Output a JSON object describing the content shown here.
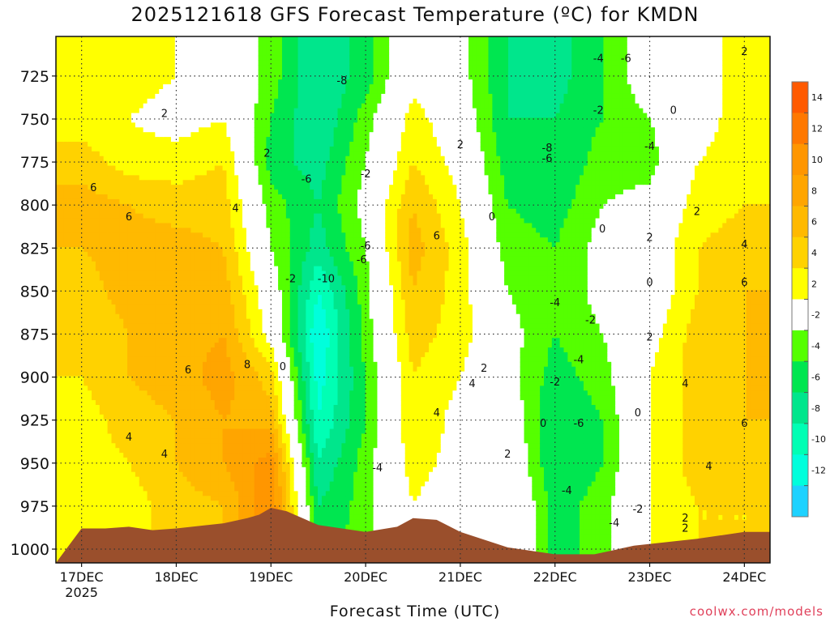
{
  "chart_data": {
    "type": "heatmap",
    "title": "2025121618 GFS Forecast Temperature (ºC) for KMDN",
    "xlabel": "Forecast Time (UTC)",
    "credit": "coolwx.com/models",
    "year_label": "2025",
    "x_ticks": [
      "17DEC",
      "18DEC",
      "19DEC",
      "20DEC",
      "21DEC",
      "22DEC",
      "23DEC",
      "24DEC"
    ],
    "y_ticks": [
      725,
      750,
      775,
      800,
      825,
      850,
      875,
      900,
      925,
      950,
      975,
      1000
    ],
    "ylim": [
      1008,
      702
    ],
    "grid": true,
    "colorbar": {
      "ticks": [
        14,
        12,
        10,
        8,
        6,
        4,
        2,
        -2,
        -4,
        -6,
        -8,
        -10,
        -12
      ],
      "colors": [
        "#ff5a00",
        "#ff7800",
        "#ff9600",
        "#ffa500",
        "#ffb900",
        "#ffd200",
        "#ffff00",
        "#ffffff",
        "#55ff00",
        "#00e650",
        "#00e68c",
        "#00ffb4",
        "#00ffdc",
        "#1ed2ff"
      ]
    },
    "columns": [
      {
        "time": "17DEC 00Z",
        "temps": [
          3,
          3,
          5,
          7,
          6,
          5,
          4,
          4,
          3,
          3,
          2,
          2
        ]
      },
      {
        "time": "17DEC 12Z",
        "temps": [
          3,
          2,
          3,
          6,
          7,
          7,
          6,
          6,
          5,
          4,
          3,
          3
        ]
      },
      {
        "time": "18DEC 00Z",
        "temps": [
          2,
          1,
          3,
          5,
          7,
          7,
          7,
          7,
          6,
          6,
          5,
          5
        ]
      },
      {
        "time": "18DEC 12Z",
        "temps": [
          1,
          2,
          4,
          5,
          6,
          7,
          8,
          9,
          8,
          8,
          6,
          6
        ]
      },
      {
        "time": "19DEC 00Z",
        "temps": [
          -3,
          -4,
          -5,
          -3,
          -2,
          0,
          1,
          5,
          7,
          11,
          12,
          12
        ]
      },
      {
        "time": "19DEC 12Z",
        "temps": [
          -8,
          -8,
          -7,
          -6,
          -7,
          -10,
          -12,
          -11,
          -10,
          -8,
          -6,
          -5
        ]
      },
      {
        "time": "20DEC 00Z",
        "temps": [
          -5,
          -3,
          -2,
          -1,
          -2,
          -3,
          -3,
          -4,
          -4,
          -3,
          -3,
          -3
        ]
      },
      {
        "time": "20DEC 12Z",
        "temps": [
          1,
          3,
          4,
          6,
          7,
          6,
          5,
          4,
          4,
          3,
          2,
          2
        ]
      },
      {
        "time": "21DEC 00Z",
        "temps": [
          -1,
          0,
          1,
          2,
          3,
          3,
          3,
          2,
          1,
          1,
          0,
          0
        ]
      },
      {
        "time": "21DEC 12Z",
        "temps": [
          -6,
          -6,
          -5,
          -4,
          -3,
          -2,
          -1,
          -1,
          0,
          1,
          2,
          2
        ]
      },
      {
        "time": "22DEC 00Z",
        "temps": [
          -7,
          -6,
          -6,
          -5,
          -4,
          -4,
          -4,
          -5,
          -6,
          -6,
          -5,
          -5
        ]
      },
      {
        "time": "22DEC 12Z",
        "temps": [
          -4,
          -4,
          -3,
          -2,
          -1,
          -1,
          -2,
          -3,
          -4,
          -4,
          -3,
          -3
        ]
      },
      {
        "time": "23DEC 00Z",
        "temps": [
          0,
          -2,
          -3,
          -1,
          0,
          0,
          1,
          2,
          2,
          2,
          2,
          2
        ]
      },
      {
        "time": "23DEC 12Z",
        "temps": [
          1,
          1,
          2,
          3,
          4,
          4,
          5,
          5,
          5,
          5,
          4,
          4
        ]
      },
      {
        "time": "24DEC 00Z",
        "temps": [
          3,
          3,
          3,
          4,
          5,
          6,
          6,
          6,
          6,
          5,
          4,
          4
        ]
      }
    ],
    "contour_labels": [
      {
        "text": "6",
        "time": "17DEC 03Z",
        "p": 790
      },
      {
        "text": "6",
        "time": "17DEC 12Z",
        "p": 807
      },
      {
        "text": "2",
        "time": "17DEC 21Z",
        "p": 747
      },
      {
        "text": "4",
        "time": "18DEC 15Z",
        "p": 802
      },
      {
        "text": "6",
        "time": "18DEC 03Z",
        "p": 896
      },
      {
        "text": "8",
        "time": "18DEC 18Z",
        "p": 893
      },
      {
        "text": "4",
        "time": "17DEC 12Z",
        "p": 935
      },
      {
        "text": "4",
        "time": "17DEC 21Z",
        "p": 945
      },
      {
        "text": "2",
        "time": "18DEC 23Z",
        "p": 770
      },
      {
        "text": "-6",
        "time": "19DEC 09Z",
        "p": 785
      },
      {
        "text": "-8",
        "time": "19DEC 18Z",
        "p": 728
      },
      {
        "text": "-2",
        "time": "20DEC 00Z",
        "p": 782
      },
      {
        "text": "-6",
        "time": "19DEC 24Z",
        "p": 824
      },
      {
        "text": "-6",
        "time": "19DEC 23Z",
        "p": 832
      },
      {
        "text": "-2",
        "time": "19DEC 05Z",
        "p": 843
      },
      {
        "text": "-10",
        "time": "19DEC 14Z",
        "p": 843
      },
      {
        "text": "0",
        "time": "19DEC 03Z",
        "p": 894
      },
      {
        "text": "-4",
        "time": "20DEC 03Z",
        "p": 953
      },
      {
        "text": "2",
        "time": "20DEC 24Z",
        "p": 765
      },
      {
        "text": "6",
        "time": "20DEC 18Z",
        "p": 818
      },
      {
        "text": "4",
        "time": "20DEC 18Z",
        "p": 921
      },
      {
        "text": "0",
        "time": "21DEC 08Z",
        "p": 807
      },
      {
        "text": "2",
        "time": "21DEC 06Z",
        "p": 895
      },
      {
        "text": "4",
        "time": "21DEC 03Z",
        "p": 904
      },
      {
        "text": "2",
        "time": "21DEC 12Z",
        "p": 945
      },
      {
        "text": "-4",
        "time": "21DEC 24Z",
        "p": 857
      },
      {
        "text": "-2",
        "time": "22DEC 09Z",
        "p": 867
      },
      {
        "text": "-4",
        "time": "22DEC 06Z",
        "p": 890
      },
      {
        "text": "-2",
        "time": "21DEC 24Z",
        "p": 903
      },
      {
        "text": "0",
        "time": "21DEC 21Z",
        "p": 927
      },
      {
        "text": "-6",
        "time": "22DEC 06Z",
        "p": 927
      },
      {
        "text": "-4",
        "time": "22DEC 03Z",
        "p": 966
      },
      {
        "text": "-8",
        "time": "21DEC 22Z",
        "p": 767
      },
      {
        "text": "-6",
        "time": "21DEC 22Z",
        "p": 773
      },
      {
        "text": "-4",
        "time": "22DEC 11Z",
        "p": 715
      },
      {
        "text": "-6",
        "time": "22DEC 18Z",
        "p": 715
      },
      {
        "text": "-2",
        "time": "22DEC 11Z",
        "p": 745
      },
      {
        "text": "0",
        "time": "23DEC 06Z",
        "p": 745
      },
      {
        "text": "-4",
        "time": "22DEC 24Z",
        "p": 766
      },
      {
        "text": "0",
        "time": "22DEC 12Z",
        "p": 814
      },
      {
        "text": "2",
        "time": "23DEC 00Z",
        "p": 819
      },
      {
        "text": "0",
        "time": "22DEC 24Z",
        "p": 845
      },
      {
        "text": "2",
        "time": "23DEC 00Z",
        "p": 877
      },
      {
        "text": "0",
        "time": "22DEC 21Z",
        "p": 921
      },
      {
        "text": "-2",
        "time": "22DEC 21Z",
        "p": 977
      },
      {
        "text": "-4",
        "time": "22DEC 15Z",
        "p": 985
      },
      {
        "text": "2",
        "time": "23DEC 09Z",
        "p": 988
      },
      {
        "text": "2",
        "time": "24DEC 00Z",
        "p": 711
      },
      {
        "text": "2",
        "time": "23DEC 12Z",
        "p": 804
      },
      {
        "text": "4",
        "time": "24DEC 00Z",
        "p": 823
      },
      {
        "text": "6",
        "time": "24DEC 00Z",
        "p": 845
      },
      {
        "text": "4",
        "time": "23DEC 09Z",
        "p": 904
      },
      {
        "text": "6",
        "time": "23DEC 24Z",
        "p": 927
      },
      {
        "text": "4",
        "time": "23DEC 15Z",
        "p": 952
      },
      {
        "text": "2",
        "time": "23DEC 09Z",
        "p": 982
      }
    ],
    "terrain": {
      "color": "#9a4f2c",
      "surface_pressure_hpa": [
        [
          0,
          988
        ],
        [
          6,
          988
        ],
        [
          12,
          987
        ],
        [
          18,
          989
        ],
        [
          24,
          988
        ],
        [
          36,
          985
        ],
        [
          42,
          982
        ],
        [
          45,
          980
        ],
        [
          48,
          976
        ],
        [
          52,
          978
        ],
        [
          56,
          982
        ],
        [
          60,
          986
        ],
        [
          72,
          990
        ],
        [
          80,
          987
        ],
        [
          84,
          982
        ],
        [
          90,
          983
        ],
        [
          96,
          990
        ],
        [
          108,
          999
        ],
        [
          120,
          1003
        ],
        [
          130,
          1003
        ],
        [
          140,
          998
        ],
        [
          156,
          994
        ],
        [
          168,
          990
        ],
        [
          175,
          990
        ]
      ]
    }
  }
}
